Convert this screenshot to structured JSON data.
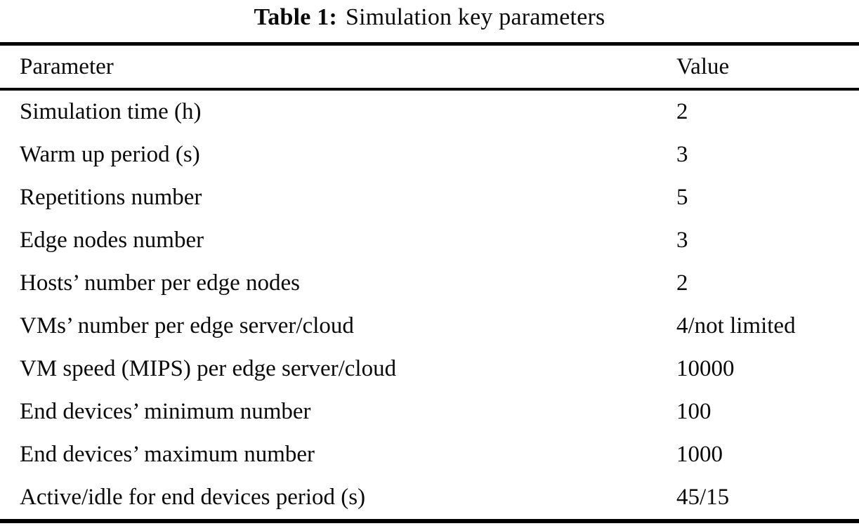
{
  "caption": {
    "label": "Table 1:",
    "text": "Simulation key parameters"
  },
  "table": {
    "headers": {
      "parameter": "Parameter",
      "value": "Value"
    },
    "rows": [
      {
        "parameter": "Simulation time (h)",
        "value": "2"
      },
      {
        "parameter": "Warm up period (s)",
        "value": "3"
      },
      {
        "parameter": "Repetitions number",
        "value": "5"
      },
      {
        "parameter": "Edge nodes number",
        "value": "3"
      },
      {
        "parameter": "Hosts’ number per edge nodes",
        "value": "2"
      },
      {
        "parameter": "VMs’ number per edge server/cloud",
        "value": "4/not limited"
      },
      {
        "parameter": "VM speed (MIPS) per edge server/cloud",
        "value": "10000"
      },
      {
        "parameter": "End devices’ minimum number",
        "value": "100"
      },
      {
        "parameter": "End devices’ maximum number",
        "value": "1000"
      },
      {
        "parameter": "Active/idle for end devices period (s)",
        "value": "45/15"
      }
    ]
  },
  "colors": {
    "text": "#0a0a0a",
    "background": "#ffffff",
    "rule": "#000000"
  }
}
